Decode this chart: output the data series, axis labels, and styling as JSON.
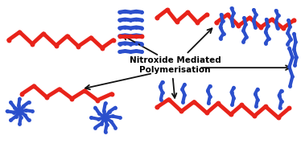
{
  "title": "Nitroxide Mediated\nPolymerisation",
  "title_fontsize": 7.5,
  "red_color": "#E8231A",
  "blue_color": "#2B4FCC",
  "bg_color": "#ffffff",
  "lw_red": 3.5,
  "lw_blue": 3.0,
  "dot_size_red": 18,
  "dot_size_blue": 12,
  "arrow_color": "#111111"
}
